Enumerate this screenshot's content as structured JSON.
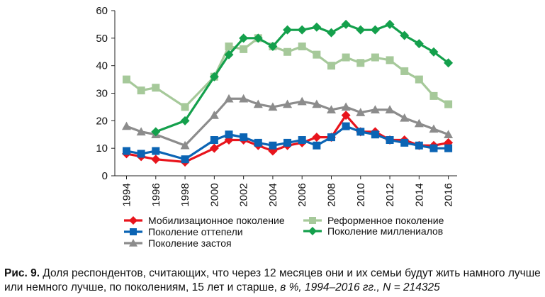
{
  "chart_data": {
    "type": "line",
    "x": [
      1994,
      1995,
      1996,
      1998,
      2000,
      2001,
      2002,
      2003,
      2004,
      2005,
      2006,
      2007,
      2008,
      2009,
      2010,
      2011,
      2012,
      2013,
      2014,
      2015,
      2016
    ],
    "x_ticks": [
      "1994",
      "1996",
      "1998",
      "2000",
      "2002",
      "2004",
      "2006",
      "2008",
      "2010",
      "2012",
      "2014",
      "2016"
    ],
    "ylim": [
      0,
      60
    ],
    "y_ticks": [
      "0",
      "10",
      "20",
      "30",
      "40",
      "50",
      "60"
    ],
    "grid": false,
    "legend_position": "bottom",
    "series": [
      {
        "name": "Мобилизационное поколение",
        "color": "#e8141c",
        "marker": "diamond",
        "values": [
          8,
          7,
          6,
          5,
          10,
          13,
          13,
          11,
          9,
          11,
          12,
          14,
          14,
          22,
          16,
          16,
          13,
          13,
          11,
          11,
          12
        ]
      },
      {
        "name": "Реформенное поколение",
        "color": "#a6c99a",
        "marker": "square",
        "values": [
          35,
          31,
          32,
          25,
          36,
          47,
          46,
          50,
          47,
          45,
          47,
          44,
          40,
          43,
          41,
          43,
          42,
          38,
          35,
          29,
          26
        ]
      },
      {
        "name": "Поколение оттепели",
        "color": "#0b64b4",
        "marker": "square",
        "values": [
          9,
          8,
          9,
          6,
          13,
          15,
          14,
          12,
          11,
          12,
          13,
          11,
          14,
          18,
          16,
          15,
          13,
          12,
          11,
          10,
          10
        ]
      },
      {
        "name": "Поколение миллениалов",
        "color": "#14a04c",
        "marker": "diamond",
        "values": [
          null,
          null,
          16,
          20,
          36,
          44,
          50,
          50,
          47,
          53,
          53,
          54,
          52,
          55,
          53,
          53,
          55,
          51,
          48,
          45,
          41
        ]
      },
      {
        "name": "Поколение застоя",
        "color": "#8c8c8c",
        "marker": "triangle",
        "values": [
          18,
          16,
          15,
          11,
          22,
          28,
          28,
          26,
          25,
          26,
          27,
          26,
          24,
          25,
          23,
          24,
          24,
          21,
          19,
          17,
          15
        ]
      }
    ]
  },
  "caption": {
    "prefix": "Рис. 9.",
    "text": " Доля респондентов, считающих, что через 12 месяцев они и их семьи будут жить намного лучше или немного лучше, по поколениям, 15 лет и старше, ",
    "italic": "в %, 1994–2016 гг., N = 214325"
  }
}
